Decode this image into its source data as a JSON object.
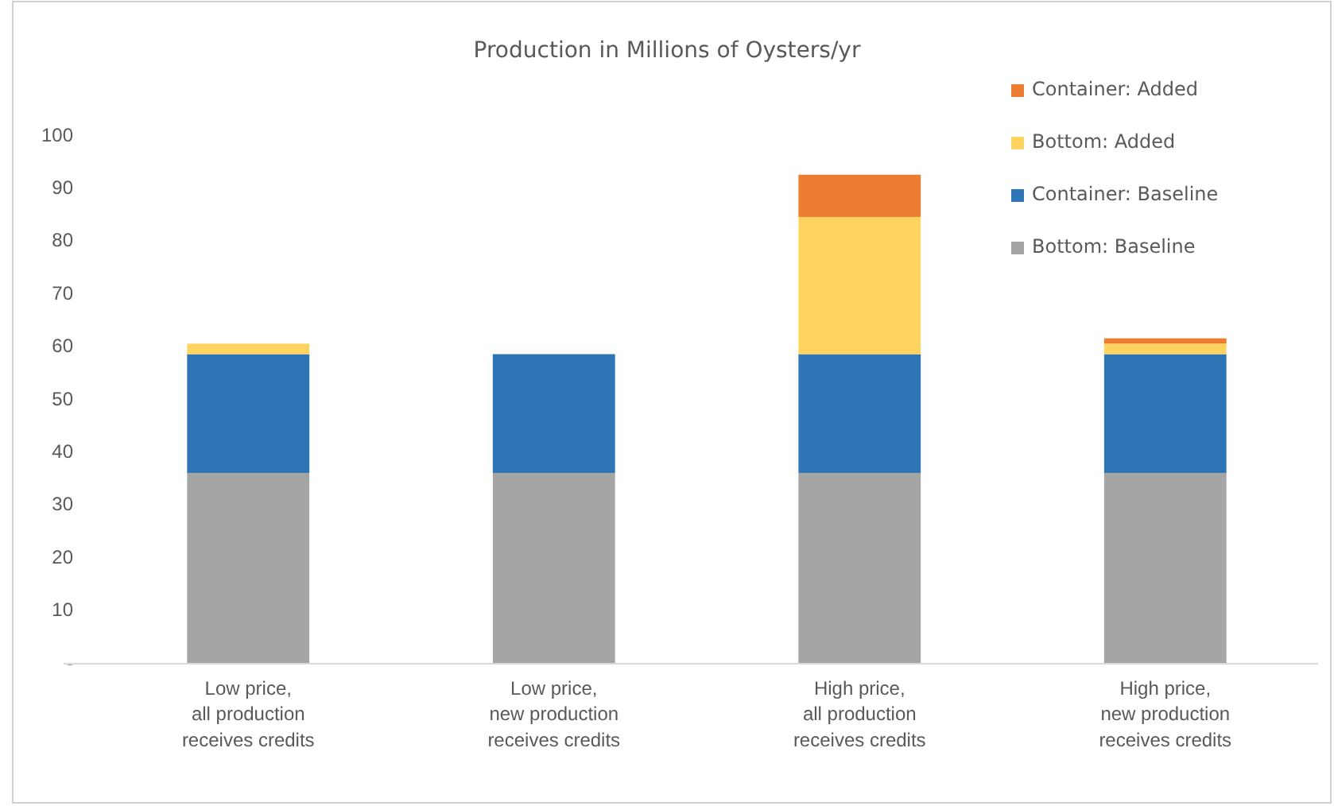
{
  "chart_data": {
    "type": "bar",
    "title": "Production in Millions of Oysters/yr",
    "stacked": true,
    "legend": "top right",
    "grid": false,
    "categories": [
      "Low price,\nall production\nreceives credits",
      "Low price,\nnew production\nreceives credits",
      "High price,\nall production\nreceives credits",
      "High price,\nnew production\nreceives credits"
    ],
    "ylim": [
      0,
      100
    ],
    "yticks": [
      {
        "value": 0,
        "label": "-"
      },
      10,
      20,
      30,
      40,
      50,
      60,
      70,
      80,
      90,
      100
    ],
    "series": [
      {
        "name": "Bottom: Baseline",
        "color": "#a5a5a5",
        "values": [
          36,
          36,
          36,
          36
        ]
      },
      {
        "name": "Container: Baseline",
        "color": "#2e75b6",
        "values": [
          22.5,
          22.5,
          22.5,
          22.5
        ]
      },
      {
        "name": "Bottom: Added",
        "color": "#ffd45e",
        "values": [
          2,
          0,
          26,
          2
        ]
      },
      {
        "name": "Container: Added",
        "color": "#ed7d31",
        "values": [
          0,
          0,
          8,
          1
        ]
      }
    ]
  }
}
